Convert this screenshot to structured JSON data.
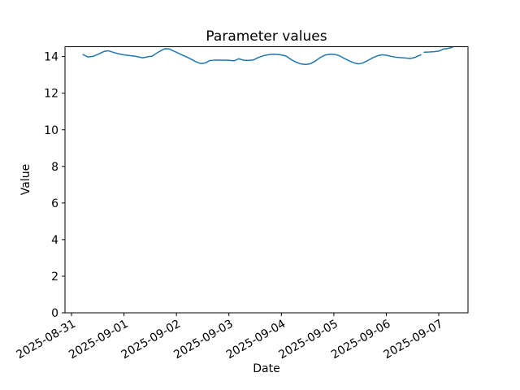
{
  "figure": {
    "background": "#ffffff",
    "frame_color": "#000000"
  },
  "chart_data": {
    "type": "line",
    "title": "Parameter values",
    "xlabel": "Date",
    "ylabel": "Value",
    "x_origin_date": "2025-08-31",
    "x_tick_labels": [
      "2025-08-31",
      "2025-09-01",
      "2025-09-02",
      "2025-09-03",
      "2025-09-04",
      "2025-09-05",
      "2025-09-06",
      "2025-09-07"
    ],
    "x_tick_days": [
      0,
      1,
      2,
      3,
      4,
      5,
      6,
      7
    ],
    "x_tick_rotation_deg": 30,
    "y_ticks": [
      0,
      2,
      4,
      6,
      8,
      10,
      12,
      14
    ],
    "xlim_days": [
      -0.124,
      7.557
    ],
    "ylim": [
      0,
      14.54
    ],
    "grid": false,
    "legend": null,
    "line_color": "#1f77b4",
    "line_width": 1.5,
    "series": [
      {
        "name": "parameter-values",
        "x_days": [
          0.22,
          0.31,
          0.42,
          0.53,
          0.62,
          0.7,
          0.81,
          0.9,
          0.99,
          1.12,
          1.22,
          1.36,
          1.47,
          1.53,
          1.63,
          1.72,
          1.78,
          1.86,
          1.95,
          2.0,
          2.09,
          2.18,
          2.28,
          2.37,
          2.46,
          2.56,
          2.63,
          2.73,
          2.82,
          2.93,
          2.99,
          3.1,
          3.19,
          3.28,
          3.38,
          3.47,
          3.56,
          3.66,
          3.75,
          3.84,
          3.93,
          4.0,
          4.09,
          4.18,
          4.27,
          4.37,
          4.46,
          4.55,
          4.65,
          4.74,
          4.83,
          4.92,
          5.02,
          5.11,
          5.2,
          5.3,
          5.39,
          5.47,
          5.56,
          5.65,
          5.75,
          5.84,
          5.92,
          6.01,
          6.1,
          6.19,
          6.29,
          6.38,
          6.46,
          6.54,
          6.61,
          6.66,
          6.69,
          6.72,
          6.82,
          6.91,
          7.0,
          7.05,
          7.09,
          7.15,
          7.2,
          7.26
        ],
        "values": [
          14.11,
          13.98,
          14.02,
          14.16,
          14.28,
          14.32,
          14.22,
          14.15,
          14.1,
          14.05,
          14.02,
          13.93,
          14.0,
          14.02,
          14.2,
          14.35,
          14.43,
          14.42,
          14.3,
          14.24,
          14.11,
          14.0,
          13.86,
          13.72,
          13.62,
          13.66,
          13.78,
          13.81,
          13.81,
          13.8,
          13.8,
          13.77,
          13.88,
          13.8,
          13.79,
          13.82,
          13.95,
          14.05,
          14.1,
          14.13,
          14.12,
          14.09,
          14.03,
          13.85,
          13.71,
          13.6,
          13.57,
          13.61,
          13.76,
          13.95,
          14.08,
          14.13,
          14.12,
          14.04,
          13.9,
          13.76,
          13.65,
          13.6,
          13.66,
          13.79,
          13.95,
          14.05,
          14.1,
          14.07,
          14.01,
          13.96,
          13.94,
          13.92,
          13.9,
          13.95,
          14.04,
          14.1,
          null,
          14.24,
          14.25,
          14.27,
          14.3,
          14.36,
          14.42,
          14.43,
          14.47,
          14.5
        ]
      }
    ]
  }
}
